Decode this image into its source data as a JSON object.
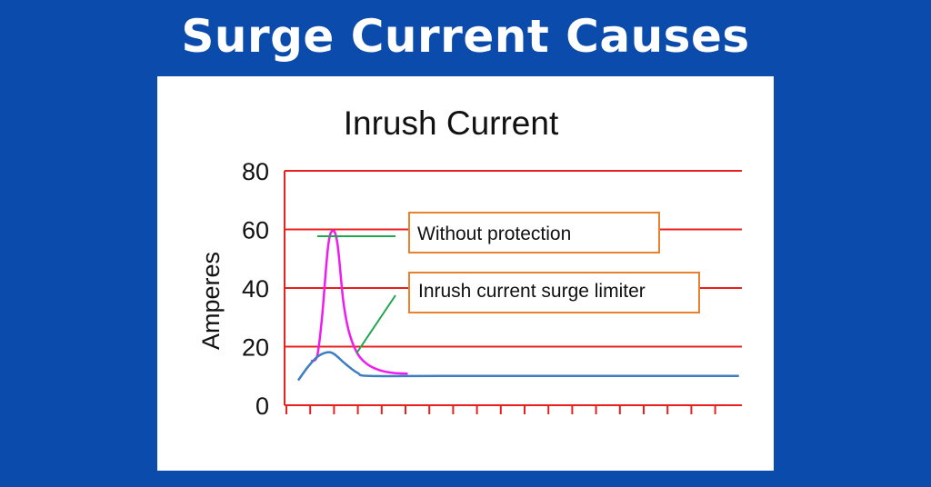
{
  "banner": {
    "title": "Surge Current Causes"
  },
  "chart_data": {
    "type": "line",
    "title": "Inrush Current",
    "xlabel": "",
    "ylabel": "Amperes",
    "ylim": [
      0,
      80
    ],
    "yticks": [
      0,
      20,
      40,
      60,
      80
    ],
    "grid": "horizontal",
    "series": [
      {
        "name": "Without protection",
        "color": "#ee1cee",
        "points": [
          [
            0.55,
            15
          ],
          [
            0.8,
            17
          ],
          [
            1.0,
            30
          ],
          [
            1.25,
            54
          ],
          [
            1.45,
            59.5
          ],
          [
            1.65,
            55
          ],
          [
            1.9,
            35
          ],
          [
            2.15,
            24.5
          ],
          [
            2.5,
            17.5
          ],
          [
            2.9,
            14
          ],
          [
            3.4,
            12
          ],
          [
            4.0,
            11
          ],
          [
            4.6,
            10.8
          ]
        ]
      },
      {
        "name": "Inrush current surge limiter",
        "color": "#3d7ec0",
        "points": [
          [
            0,
            8.5
          ],
          [
            0.4,
            13
          ],
          [
            0.8,
            16.5
          ],
          [
            1.2,
            18
          ],
          [
            1.5,
            17.5
          ],
          [
            2.0,
            14
          ],
          [
            2.5,
            11
          ],
          [
            3.0,
            10
          ],
          [
            6,
            10
          ],
          [
            12,
            10
          ],
          [
            18.5,
            10
          ]
        ]
      }
    ],
    "annotations": [
      {
        "text": "Without protection",
        "series": "Without protection"
      },
      {
        "text": "Inrush current surge limiter",
        "series": "Inrush current surge limiter"
      }
    ],
    "colors": {
      "grid": "#e8201c",
      "leader": "#21a650",
      "callout_border": "#e8822e"
    }
  }
}
